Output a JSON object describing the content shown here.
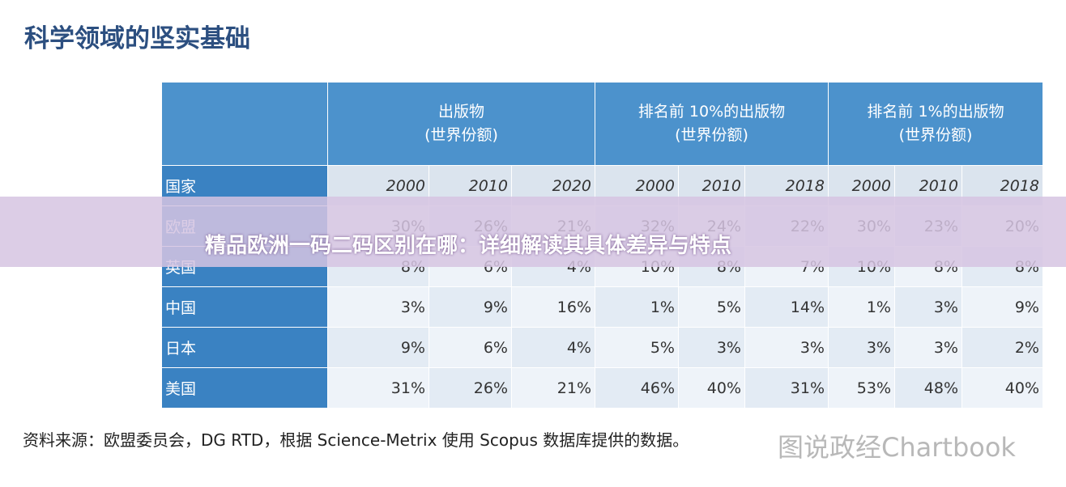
{
  "title": "科学领域的坚实基础",
  "table": {
    "header_groups": [
      {
        "label": "出版物",
        "sublabel": "(世界份额)"
      },
      {
        "label": "排名前 10%的出版物",
        "sublabel": "(世界份额)"
      },
      {
        "label": "排名前 1%的出版物",
        "sublabel": "(世界份额)"
      }
    ],
    "column_label": "国家",
    "years": [
      "2000",
      "2010",
      "2020",
      "2000",
      "2010",
      "2018",
      "2000",
      "2010",
      "2018"
    ],
    "rows": [
      {
        "country": "欧盟",
        "values": [
          "30%",
          "26%",
          "21%",
          "32%",
          "24%",
          "22%",
          "30%",
          "23%",
          "20%"
        ]
      },
      {
        "country": "英国",
        "values": [
          "8%",
          "6%",
          "4%",
          "10%",
          "8%",
          "7%",
          "10%",
          "8%",
          "8%"
        ]
      },
      {
        "country": "中国",
        "values": [
          "3%",
          "9%",
          "16%",
          "1%",
          "5%",
          "14%",
          "1%",
          "3%",
          "9%"
        ]
      },
      {
        "country": "日本",
        "values": [
          "9%",
          "6%",
          "4%",
          "5%",
          "3%",
          "3%",
          "3%",
          "3%",
          "2%"
        ]
      },
      {
        "country": "美国",
        "values": [
          "31%",
          "26%",
          "21%",
          "46%",
          "40%",
          "31%",
          "53%",
          "48%",
          "40%"
        ]
      }
    ]
  },
  "source": "资料来源：欧盟委员会，DG RTD，根据 Science-Metrix 使用 Scopus 数据库提供的数据。",
  "watermark": "图说政经Chartbook",
  "banner": "精品欧洲一码二码区别在哪：详细解读其具体差异与特点"
}
